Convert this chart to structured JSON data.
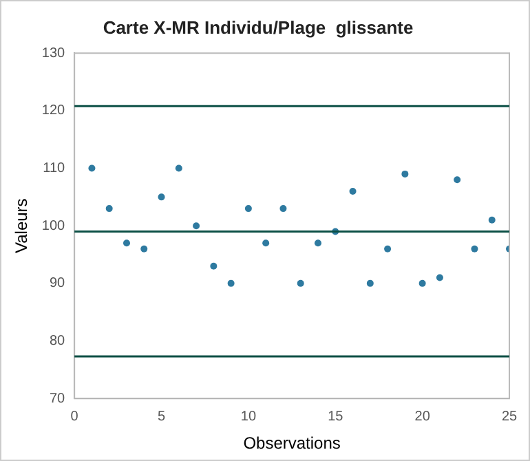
{
  "chart_data": {
    "type": "scatter",
    "title": "Carte X-MR Individu/Plage  glissante",
    "xlabel": "Observations",
    "ylabel": "Valeurs",
    "x": [
      1,
      2,
      3,
      4,
      5,
      6,
      7,
      8,
      9,
      10,
      11,
      12,
      13,
      14,
      15,
      16,
      17,
      18,
      19,
      20,
      21,
      22,
      23,
      24,
      25
    ],
    "series": [
      {
        "color": "#2e7aa0",
        "values": [
          110,
          103,
          97,
          96,
          105,
          110,
          100,
          93,
          90,
          103,
          97,
          103,
          90,
          97,
          99,
          106,
          90,
          96,
          109,
          90,
          91,
          108,
          96,
          101,
          96
        ]
      }
    ],
    "xlim": [
      0,
      25
    ],
    "xticks": [
      0,
      5,
      10,
      15,
      20,
      25
    ],
    "ylim": [
      70,
      130
    ],
    "yticks": [
      70,
      80,
      90,
      100,
      110,
      120,
      130
    ],
    "ref_lines": [
      {
        "axis": "y",
        "value": 120.8,
        "color": "#0b4f45"
      },
      {
        "axis": "y",
        "value": 99,
        "color": "#0b4f45"
      },
      {
        "axis": "y",
        "value": 77.3,
        "color": "#0b4f45"
      }
    ],
    "grid": false,
    "legend": false,
    "marker": "circle"
  }
}
